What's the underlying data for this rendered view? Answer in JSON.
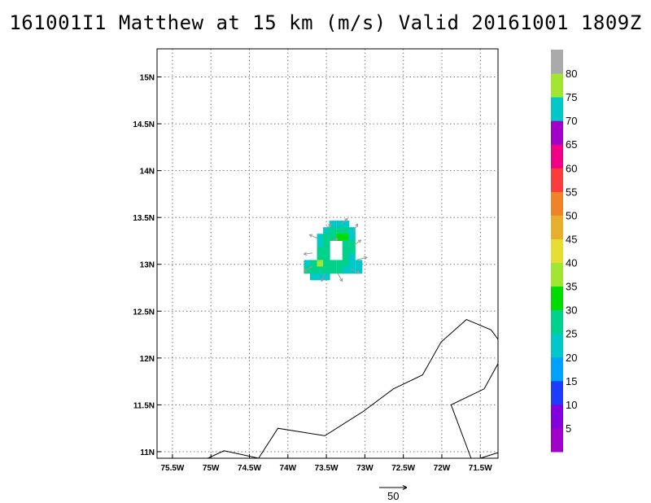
{
  "title": "161001I1 Matthew at 15 km (m/s) Valid 20161001 1809Z",
  "map": {
    "lon_range": [
      -75.7,
      -71.27
    ],
    "lat_range": [
      10.93,
      15.3
    ],
    "lon_ticks": [
      {
        "value": -75.5,
        "label": "75.5W"
      },
      {
        "value": -75.0,
        "label": "75W"
      },
      {
        "value": -74.5,
        "label": "74.5W"
      },
      {
        "value": -74.0,
        "label": "74W"
      },
      {
        "value": -73.5,
        "label": "73.5W"
      },
      {
        "value": -73.0,
        "label": "73W"
      },
      {
        "value": -72.5,
        "label": "72.5W"
      },
      {
        "value": -72.0,
        "label": "72W"
      },
      {
        "value": -71.5,
        "label": "71.5W"
      }
    ],
    "lat_ticks": [
      {
        "value": 11.0,
        "label": "11N"
      },
      {
        "value": 11.5,
        "label": "11.5N"
      },
      {
        "value": 12.0,
        "label": "12N"
      },
      {
        "value": 12.5,
        "label": "12.5N"
      },
      {
        "value": 13.0,
        "label": "13N"
      },
      {
        "value": 13.5,
        "label": "13.5N"
      },
      {
        "value": 14.0,
        "label": "14N"
      },
      {
        "value": 14.5,
        "label": "14.5N"
      },
      {
        "value": 15.0,
        "label": "15N"
      }
    ],
    "grid": "dotted",
    "coastlines": [
      [
        [
          -75.04,
          10.93
        ],
        [
          -74.83,
          11.01
        ],
        [
          -74.38,
          10.93
        ]
      ],
      [
        [
          -74.38,
          10.93
        ],
        [
          -74.13,
          11.25
        ],
        [
          -73.52,
          11.17
        ],
        [
          -73.02,
          11.43
        ],
        [
          -72.63,
          11.67
        ],
        [
          -72.25,
          11.82
        ],
        [
          -72.01,
          12.17
        ],
        [
          -71.68,
          12.41
        ],
        [
          -71.36,
          12.3
        ],
        [
          -71.27,
          12.2
        ]
      ],
      [
        [
          -71.27,
          11.94
        ],
        [
          -71.45,
          11.67
        ],
        [
          -71.88,
          11.5
        ],
        [
          -71.62,
          10.93
        ]
      ],
      [
        [
          -71.5,
          10.93
        ],
        [
          -71.27,
          10.99
        ]
      ]
    ],
    "wind_field": {
      "cells": [
        {
          "lon": -73.42,
          "lat": 13.43,
          "v": 21
        },
        {
          "lon": -73.33,
          "lat": 13.43,
          "v": 22
        },
        {
          "lon": -73.25,
          "lat": 13.43,
          "v": 20
        },
        {
          "lon": -73.5,
          "lat": 13.36,
          "v": 24
        },
        {
          "lon": -73.42,
          "lat": 13.36,
          "v": 28
        },
        {
          "lon": -73.33,
          "lat": 13.36,
          "v": 29
        },
        {
          "lon": -73.25,
          "lat": 13.36,
          "v": 26
        },
        {
          "lon": -73.17,
          "lat": 13.36,
          "v": 21
        },
        {
          "lon": -73.58,
          "lat": 13.29,
          "v": 22
        },
        {
          "lon": -73.5,
          "lat": 13.29,
          "v": 26
        },
        {
          "lon": -73.42,
          "lat": 13.29,
          "v": 27
        },
        {
          "lon": -73.33,
          "lat": 13.29,
          "v": 30
        },
        {
          "lon": -73.25,
          "lat": 13.29,
          "v": 31
        },
        {
          "lon": -73.17,
          "lat": 13.29,
          "v": 24
        },
        {
          "lon": -73.58,
          "lat": 13.22,
          "v": 24
        },
        {
          "lon": -73.5,
          "lat": 13.22,
          "v": 27
        },
        {
          "lon": -73.25,
          "lat": 13.22,
          "v": 28
        },
        {
          "lon": -73.17,
          "lat": 13.22,
          "v": 25
        },
        {
          "lon": -73.58,
          "lat": 13.15,
          "v": 25
        },
        {
          "lon": -73.5,
          "lat": 13.15,
          "v": 28
        },
        {
          "lon": -73.25,
          "lat": 13.15,
          "v": 27
        },
        {
          "lon": -73.17,
          "lat": 13.15,
          "v": 25
        },
        {
          "lon": -73.58,
          "lat": 13.08,
          "v": 26
        },
        {
          "lon": -73.5,
          "lat": 13.08,
          "v": 29
        },
        {
          "lon": -73.25,
          "lat": 13.08,
          "v": 26
        },
        {
          "lon": -73.17,
          "lat": 13.08,
          "v": 24
        },
        {
          "lon": -73.75,
          "lat": 13.01,
          "v": 24
        },
        {
          "lon": -73.67,
          "lat": 13.01,
          "v": 27
        },
        {
          "lon": -73.58,
          "lat": 13.01,
          "v": 36
        },
        {
          "lon": -73.5,
          "lat": 13.01,
          "v": 28
        },
        {
          "lon": -73.42,
          "lat": 13.01,
          "v": 26
        },
        {
          "lon": -73.33,
          "lat": 13.01,
          "v": 26
        },
        {
          "lon": -73.25,
          "lat": 13.01,
          "v": 25
        },
        {
          "lon": -73.17,
          "lat": 13.01,
          "v": 23
        },
        {
          "lon": -73.08,
          "lat": 13.01,
          "v": 21
        },
        {
          "lon": -73.75,
          "lat": 12.94,
          "v": 25
        },
        {
          "lon": -73.67,
          "lat": 12.94,
          "v": 27
        },
        {
          "lon": -73.58,
          "lat": 12.94,
          "v": 28
        },
        {
          "lon": -73.5,
          "lat": 12.94,
          "v": 27
        },
        {
          "lon": -73.42,
          "lat": 12.94,
          "v": 26
        },
        {
          "lon": -73.33,
          "lat": 12.94,
          "v": 25
        },
        {
          "lon": -73.25,
          "lat": 12.94,
          "v": 24
        },
        {
          "lon": -73.17,
          "lat": 12.94,
          "v": 23
        },
        {
          "lon": -73.08,
          "lat": 12.94,
          "v": 22
        },
        {
          "lon": -73.67,
          "lat": 12.87,
          "v": 22
        },
        {
          "lon": -73.58,
          "lat": 12.87,
          "v": 21
        },
        {
          "lon": -73.5,
          "lat": 12.87,
          "v": 20
        }
      ],
      "vectors": [
        {
          "lon": -73.31,
          "lat": 13.43,
          "u": 12,
          "v": 10
        },
        {
          "lon": -73.52,
          "lat": 13.38,
          "u": 12,
          "v": 8
        },
        {
          "lon": -73.62,
          "lat": 13.28,
          "u": -14,
          "v": 6
        },
        {
          "lon": -73.68,
          "lat": 13.12,
          "u": -16,
          "v": -2
        },
        {
          "lon": -73.68,
          "lat": 12.98,
          "u": -16,
          "v": -10
        },
        {
          "lon": -73.52,
          "lat": 12.9,
          "u": -6,
          "v": -14
        },
        {
          "lon": -73.35,
          "lat": 12.9,
          "u": 8,
          "v": -14
        },
        {
          "lon": -73.18,
          "lat": 12.95,
          "u": 16,
          "v": -8
        },
        {
          "lon": -73.1,
          "lat": 13.05,
          "u": 18,
          "v": 4
        },
        {
          "lon": -73.15,
          "lat": 13.2,
          "u": 14,
          "v": 10
        },
        {
          "lon": -73.15,
          "lat": 13.35,
          "u": 8,
          "v": 14
        },
        {
          "lon": -73.42,
          "lat": 13.25,
          "u": 10,
          "v": 4
        }
      ]
    }
  },
  "colorbar": {
    "segments": [
      {
        "color": "#a000c8",
        "label": "5"
      },
      {
        "color": "#8200dc",
        "label": "10"
      },
      {
        "color": "#1e3cff",
        "label": "15"
      },
      {
        "color": "#00a0ff",
        "label": "20"
      },
      {
        "color": "#00c8c8",
        "label": "25"
      },
      {
        "color": "#00d28c",
        "label": "30"
      },
      {
        "color": "#00dc00",
        "label": "35"
      },
      {
        "color": "#a0e632",
        "label": "40"
      },
      {
        "color": "#e6dc32",
        "label": "45"
      },
      {
        "color": "#e6af2d",
        "label": "50"
      },
      {
        "color": "#f08228",
        "label": "55"
      },
      {
        "color": "#fa3c3c",
        "label": "60"
      },
      {
        "color": "#f00082",
        "label": "65"
      },
      {
        "color": "#a000c8",
        "label": "70"
      },
      {
        "color": "#00c8c8",
        "label": "75"
      },
      {
        "color": "#a0e632",
        "label": "80"
      },
      {
        "color": "#aaaaaa",
        "label": ""
      }
    ]
  },
  "reference_vector": {
    "label": "50"
  }
}
